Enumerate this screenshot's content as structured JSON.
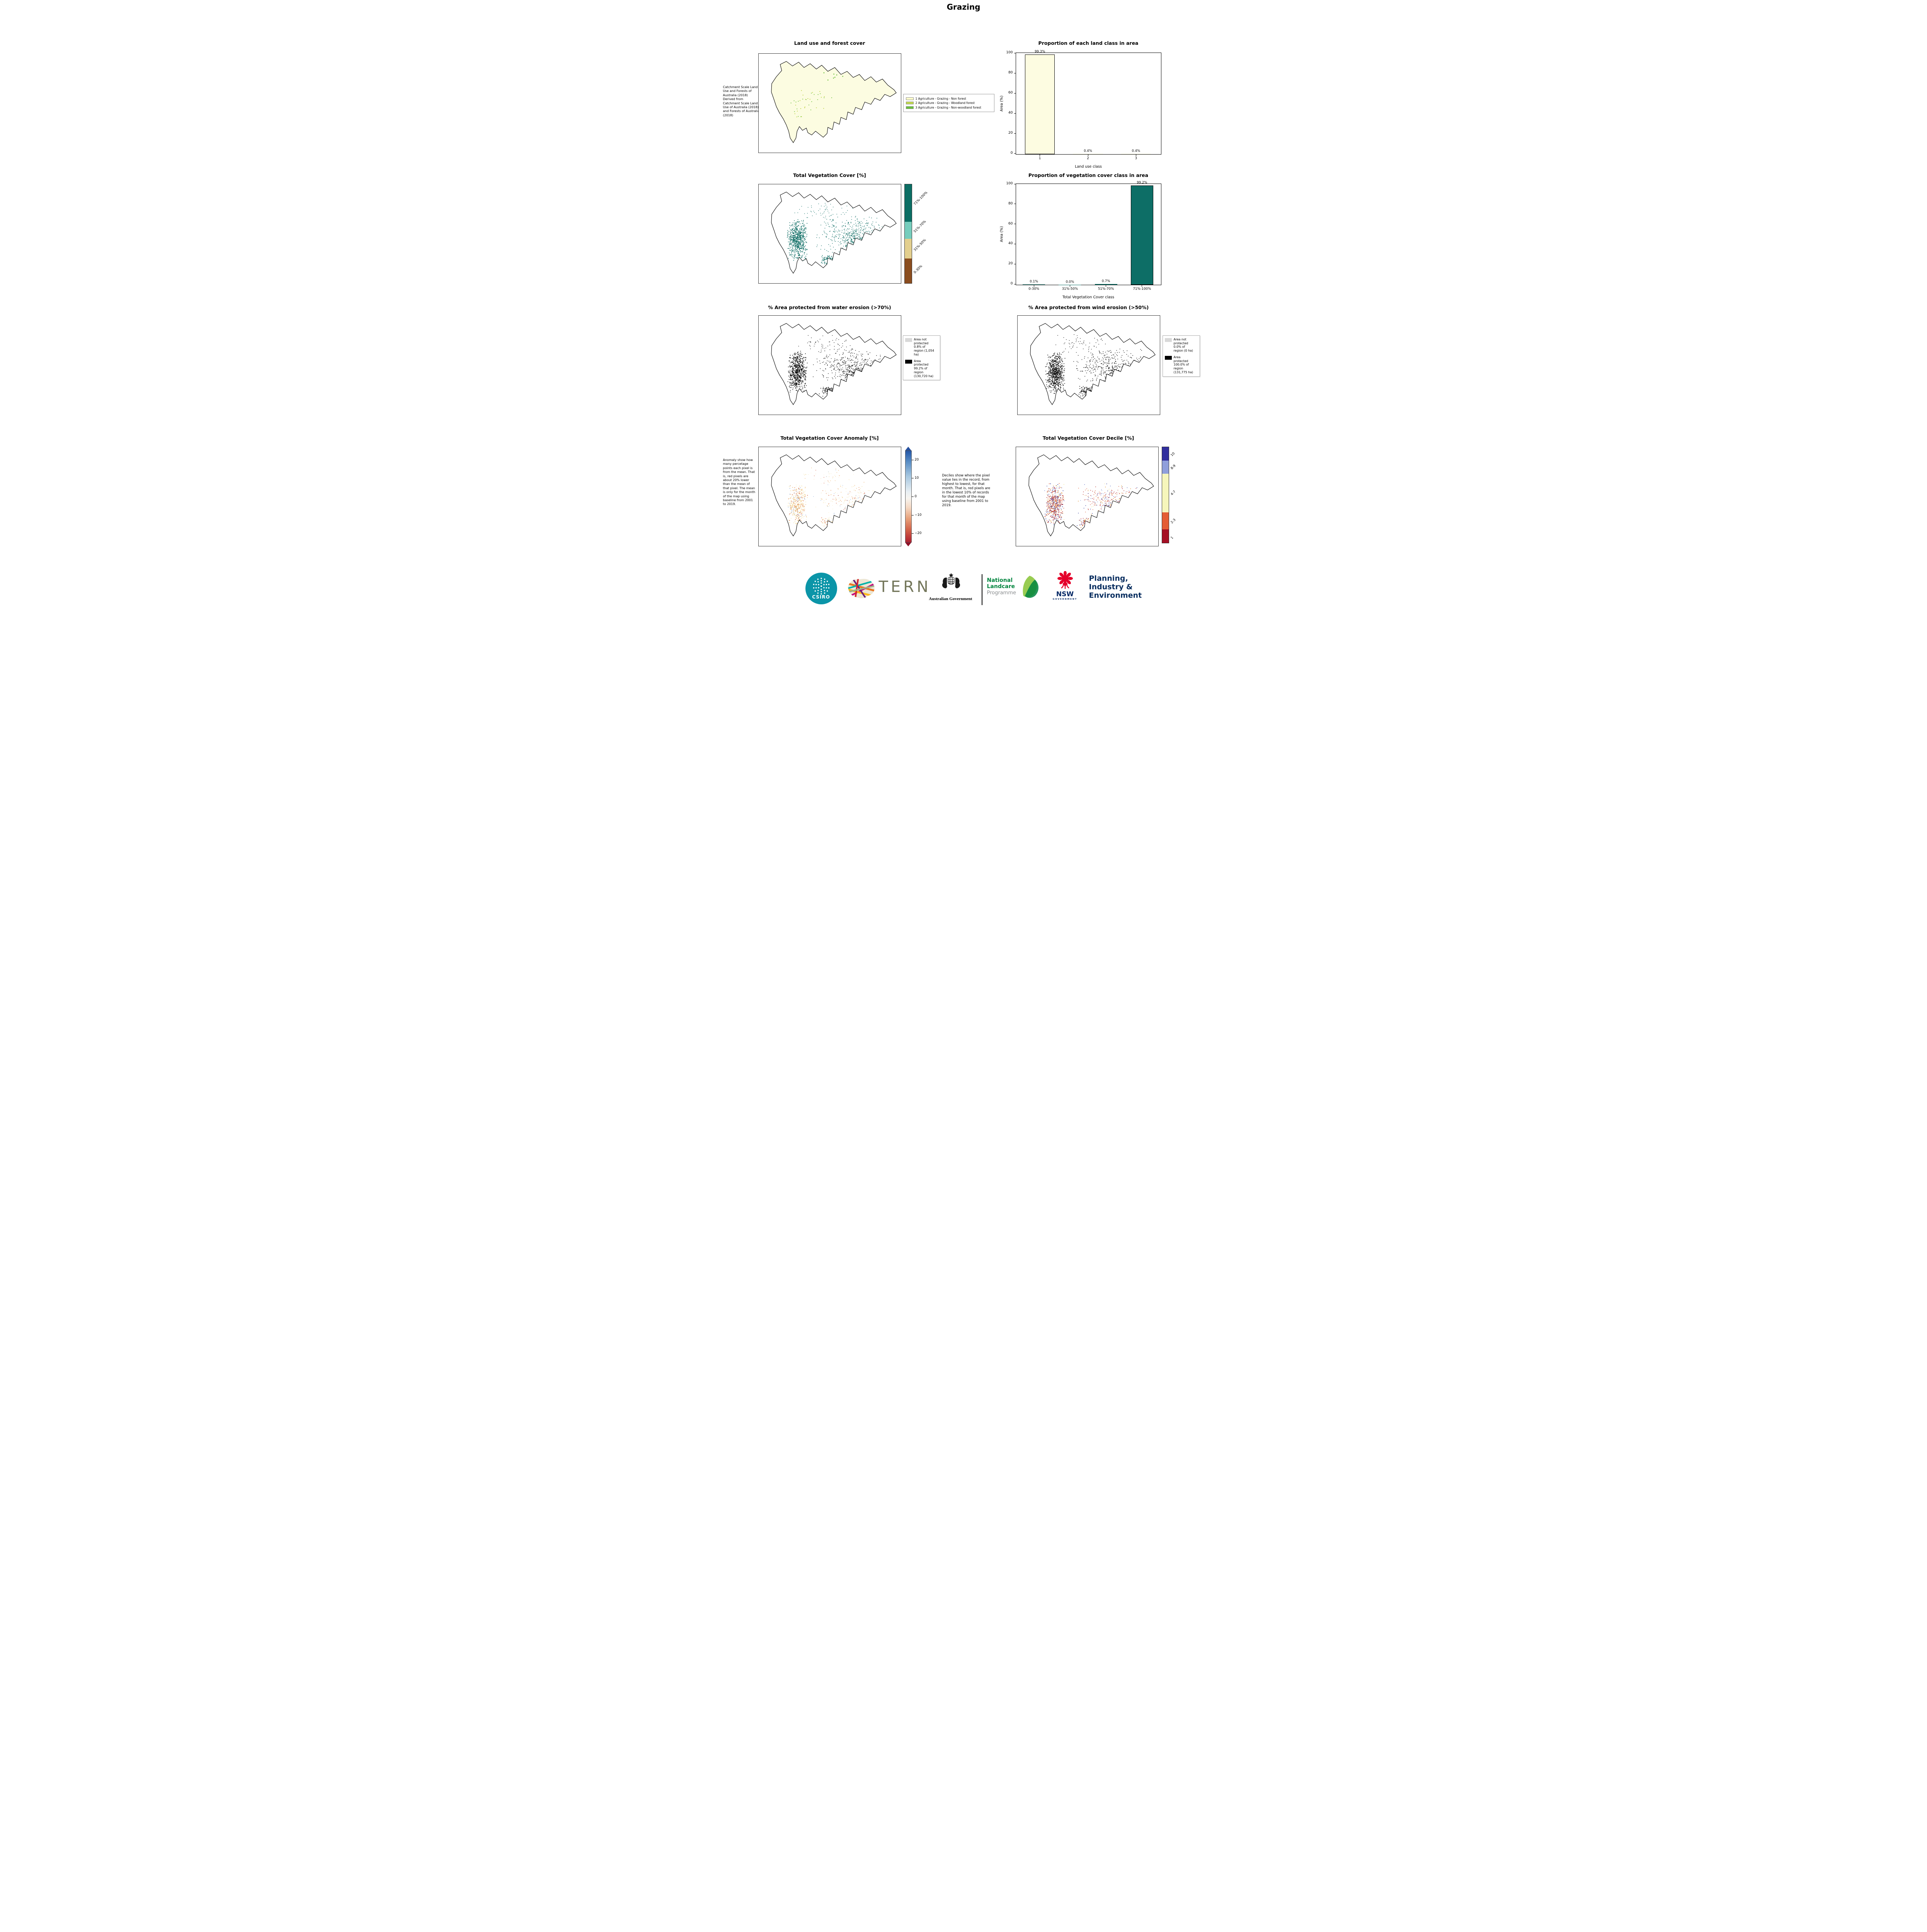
{
  "page": {
    "title": "Grazing"
  },
  "panels": {
    "land_use": {
      "title": "Land use and forest cover",
      "note": " Catchment Scale Land Use and Forests of Australia (2018) Derived from Catchment Scale Land Use of Australia (2018) and Forests of Australia (2018)",
      "legend": [
        {
          "label": "1 Agriculture - Grazing - Non forest",
          "color": "#ffffcc"
        },
        {
          "label": "2 Agriculture - Grazing - Woodland forest",
          "color": "#c2d94e"
        },
        {
          "label": "3 Agriculture - Grazing - Non-woodland forest",
          "color": "#6abf3a"
        }
      ]
    },
    "veg_cover": {
      "title": "Total Vegetation Cover [%]",
      "colorbar": [
        {
          "label": "71%-100%",
          "color": "#0c6e64"
        },
        {
          "label": "51%-70%",
          "color": "#76cdbd"
        },
        {
          "label": "31%-50%",
          "color": "#e3cf8e"
        },
        {
          "label": "0-30%",
          "color": "#8a4d1f"
        }
      ]
    },
    "water_erosion": {
      "title": "% Area protected from water erosion (>70%)",
      "legend": [
        {
          "label": "Area not protected 0.8% of region (1,054 ha)",
          "color": "#d9d9d9"
        },
        {
          "label": "Area protected 99.2% of region (130,720 ha)",
          "color": "#000000"
        }
      ]
    },
    "wind_erosion": {
      "title": "% Area protected from wind erosion (>50%)",
      "legend": [
        {
          "label": "Area not protected 0.0% of region (0 ha)",
          "color": "#d9d9d9"
        },
        {
          "label": "Area protected 100.0% of region (131,775 ha)",
          "color": "#000000"
        }
      ]
    },
    "anomaly": {
      "title": "Total Vegetation Cover Anomaly [%]",
      "note": "Anomaly show how many percetage points each pixel is from the mean. That is, red pixels are about 20% lower than the mean of that pixel. The mean is only for the month of the map using baseline from 2001 to 2019.",
      "colorbar_ticks": [
        "20",
        "10",
        "0",
        "−10",
        "−20"
      ]
    },
    "decile": {
      "title": "Total Vegetation Cover Decile [%]",
      "note": "Deciles show where the pixel value lies in the record, from highest to lowest, for that month. That is, red pixels are in the lowest 10% of records for that month of the map using baseline from 2001 to 2019.",
      "colorbar": [
        {
          "label": "10",
          "color": "#312f9e"
        },
        {
          "label": "8-9",
          "color": "#8f9fdb"
        },
        {
          "label": "4-7",
          "color": "#f6f6bb"
        },
        {
          "label": "2-3",
          "color": "#e45d35"
        },
        {
          "label": "1",
          "color": "#a50f24"
        }
      ]
    }
  },
  "chart_data": [
    {
      "type": "bar",
      "title": "Proportion of each land class in area",
      "categories": [
        "1",
        "2",
        "3"
      ],
      "values": [
        99.3,
        0.4,
        0.4
      ],
      "bar_labels": [
        "99.3%",
        "0.4%",
        "0.4%"
      ],
      "xlabel": "Land use class",
      "ylabel": "Area (%)",
      "ylim": [
        0,
        100
      ],
      "yticks": [
        0,
        20,
        40,
        60,
        80,
        100
      ],
      "legend_position": "none",
      "grid": false,
      "bar_color": "#fdfce1"
    },
    {
      "type": "bar",
      "title": "Proportion of vegetation cover class in area",
      "categories": [
        "0-30%",
        "31%-50%",
        "51%-70%",
        "71%-100%"
      ],
      "values": [
        0.1,
        0.0,
        0.7,
        99.2
      ],
      "bar_labels": [
        "0.1%",
        "0.0%",
        "0.7%",
        "99.2%"
      ],
      "xlabel": "Total Vegetation Cover class",
      "ylabel": "Area (%)",
      "ylim": [
        0,
        100
      ],
      "yticks": [
        0,
        20,
        40,
        60,
        80,
        100
      ],
      "legend_position": "none",
      "grid": false,
      "bar_color": "#0d6e66"
    }
  ],
  "map_styles": {
    "outline_color": "#000000",
    "landuse_fill": "#fcfce1",
    "landuse_speckles": [
      "#b8cc33",
      "#6abf3a"
    ],
    "veg_speckle": "#0b6b62",
    "erosion_speckle": "#0a0a0a",
    "anomaly_speckles": [
      "#f3d690",
      "#f3d690",
      "#efe2ae",
      "#f6e8b8",
      "#eaa95c",
      "#eaa95c",
      "#de7a3c",
      "#cf4e2b",
      "#9ab4dc",
      "#f9f0cf"
    ],
    "decile_speckles": [
      "#b5271f",
      "#b5271f",
      "#d95f3b",
      "#d95f3b",
      "#a50f24",
      "#e08214",
      "#f0e6a0",
      "#5a6fc0",
      "#8f9fdb",
      "#30379b"
    ]
  },
  "footer": {
    "csiro": "CSIRO",
    "tern": "TERN",
    "aus_gov": "Australian Government",
    "landcare_1": "National",
    "landcare_2": "Landcare",
    "landcare_3": "Programme",
    "nsw": "NSW",
    "nsw_sub": "GOVERNMENT",
    "planning_1": "Planning,",
    "planning_2": "Industry &",
    "planning_3": "Environment"
  }
}
